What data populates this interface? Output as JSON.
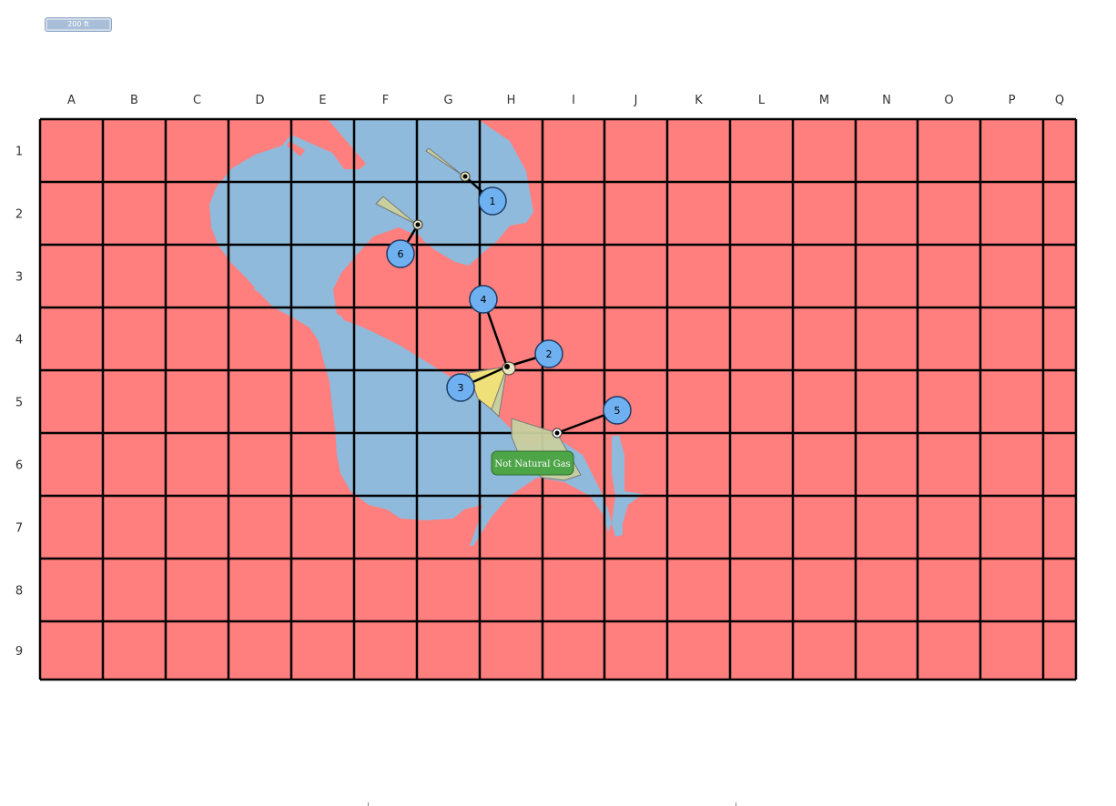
{
  "scale": {
    "label": "200 ft"
  },
  "grid": {
    "columns": [
      "A",
      "B",
      "C",
      "D",
      "E",
      "F",
      "G",
      "H",
      "I",
      "J",
      "K",
      "L",
      "M",
      "N",
      "O",
      "P",
      "Q"
    ],
    "rows": [
      "1",
      "2",
      "3",
      "4",
      "5",
      "6",
      "7",
      "8",
      "9"
    ]
  },
  "colors": {
    "land": "#ff7f7f",
    "water": "#8fbadb",
    "grid_line": "#000000",
    "marker_fill": "#6fb0f0",
    "note_fill": "#4ea548",
    "wedge_gray": "#c8d0a0",
    "wedge_yellow": "#f0e07a"
  },
  "markers": [
    {
      "id": "1",
      "label": "1"
    },
    {
      "id": "2",
      "label": "2"
    },
    {
      "id": "3",
      "label": "3"
    },
    {
      "id": "4",
      "label": "4"
    },
    {
      "id": "5",
      "label": "5"
    },
    {
      "id": "6",
      "label": "6"
    }
  ],
  "annotation": {
    "label": "Not Natural Gas"
  }
}
